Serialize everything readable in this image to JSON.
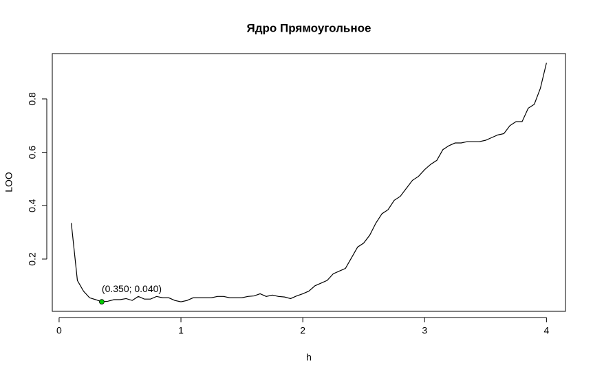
{
  "chart_data": {
    "type": "line",
    "title": "Ядро Прямоугольное",
    "xlabel": "h",
    "ylabel": "LOO",
    "x": [
      0.1,
      0.15,
      0.2,
      0.25,
      0.3,
      0.35,
      0.4,
      0.45,
      0.5,
      0.55,
      0.6,
      0.65,
      0.7,
      0.75,
      0.8,
      0.85,
      0.9,
      0.95,
      1.0,
      1.05,
      1.1,
      1.15,
      1.2,
      1.25,
      1.3,
      1.35,
      1.4,
      1.45,
      1.5,
      1.55,
      1.6,
      1.65,
      1.7,
      1.75,
      1.8,
      1.85,
      1.9,
      1.95,
      2.0,
      2.05,
      2.1,
      2.15,
      2.2,
      2.25,
      2.3,
      2.35,
      2.4,
      2.45,
      2.5,
      2.55,
      2.6,
      2.65,
      2.7,
      2.75,
      2.8,
      2.85,
      2.9,
      2.95,
      3.0,
      3.05,
      3.1,
      3.15,
      3.2,
      3.25,
      3.3,
      3.35,
      3.4,
      3.45,
      3.5,
      3.55,
      3.6,
      3.65,
      3.7,
      3.75,
      3.8,
      3.85,
      3.9,
      3.95,
      4.0
    ],
    "values": [
      0.335,
      0.12,
      0.08,
      0.055,
      0.048,
      0.04,
      0.042,
      0.048,
      0.048,
      0.052,
      0.045,
      0.06,
      0.05,
      0.05,
      0.06,
      0.055,
      0.055,
      0.045,
      0.04,
      0.045,
      0.055,
      0.055,
      0.055,
      0.055,
      0.06,
      0.06,
      0.055,
      0.055,
      0.055,
      0.06,
      0.062,
      0.07,
      0.06,
      0.065,
      0.06,
      0.058,
      0.052,
      0.062,
      0.07,
      0.08,
      0.1,
      0.11,
      0.12,
      0.145,
      0.155,
      0.165,
      0.205,
      0.245,
      0.26,
      0.29,
      0.335,
      0.37,
      0.385,
      0.42,
      0.435,
      0.465,
      0.495,
      0.51,
      0.535,
      0.555,
      0.57,
      0.61,
      0.625,
      0.635,
      0.635,
      0.64,
      0.64,
      0.64,
      0.645,
      0.655,
      0.665,
      0.67,
      0.7,
      0.715,
      0.715,
      0.765,
      0.78,
      0.84,
      0.935
    ],
    "color": "#000000",
    "highlight": {
      "x": 0.35,
      "y": 0.04,
      "label": "(0.350; 0.040)",
      "color": "#00cc00"
    },
    "xlim": [
      -0.056,
      4.156
    ],
    "ylim": [
      0.0042,
      0.9698
    ],
    "xticks": [
      0,
      1,
      2,
      3,
      4
    ],
    "yticks": [
      0.2,
      0.4,
      0.6,
      0.8
    ]
  }
}
